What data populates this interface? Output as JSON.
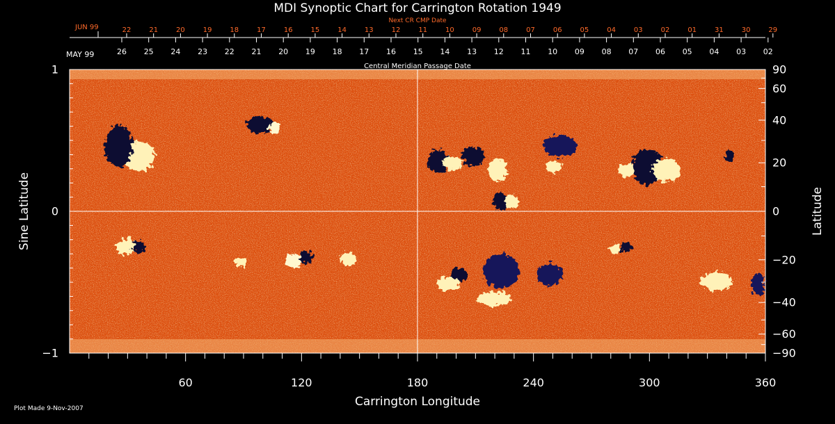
{
  "title": "MDI Synoptic Chart for Carrington Rotation 1949",
  "top_axis": {
    "label": "Next CR CMP Date",
    "month": "JUN 99",
    "ticks": [
      "22",
      "21",
      "20",
      "19",
      "18",
      "17",
      "16",
      "15",
      "14",
      "13",
      "12",
      "11",
      "10",
      "09",
      "08",
      "07",
      "06",
      "05",
      "04",
      "03",
      "02",
      "01",
      "31",
      "30",
      "29"
    ]
  },
  "date_axis": {
    "label": "Central Meridian Passage Date",
    "month": "MAY 99",
    "ticks": [
      "26",
      "25",
      "24",
      "23",
      "22",
      "21",
      "20",
      "19",
      "18",
      "17",
      "16",
      "15",
      "14",
      "13",
      "12",
      "11",
      "10",
      "09",
      "08",
      "07",
      "06",
      "05",
      "04",
      "03",
      "02"
    ]
  },
  "x_axis": {
    "label": "Carrington Longitude",
    "range": [
      0,
      360
    ],
    "ticks": [
      "60",
      "120",
      "180",
      "240",
      "300",
      "360"
    ]
  },
  "left_axis": {
    "label": "Sine Latitude",
    "range": [
      -1,
      1
    ],
    "ticks": [
      "1",
      "0",
      "−1"
    ]
  },
  "right_axis": {
    "label": "Latitude",
    "ticks": [
      "90",
      "60",
      "40",
      "20",
      "0",
      "−20",
      "−40",
      "−60",
      "−90"
    ]
  },
  "footer": {
    "plot_made": "Plot Made  9-Nov-2007"
  },
  "colors": {
    "background": "#000000",
    "field_base": "#e25510",
    "positive_polarity": "#fff4c0",
    "negative_polarity": "#0a0a30",
    "accent_label": "#ff6a2a",
    "axis": "#ffffff"
  }
}
